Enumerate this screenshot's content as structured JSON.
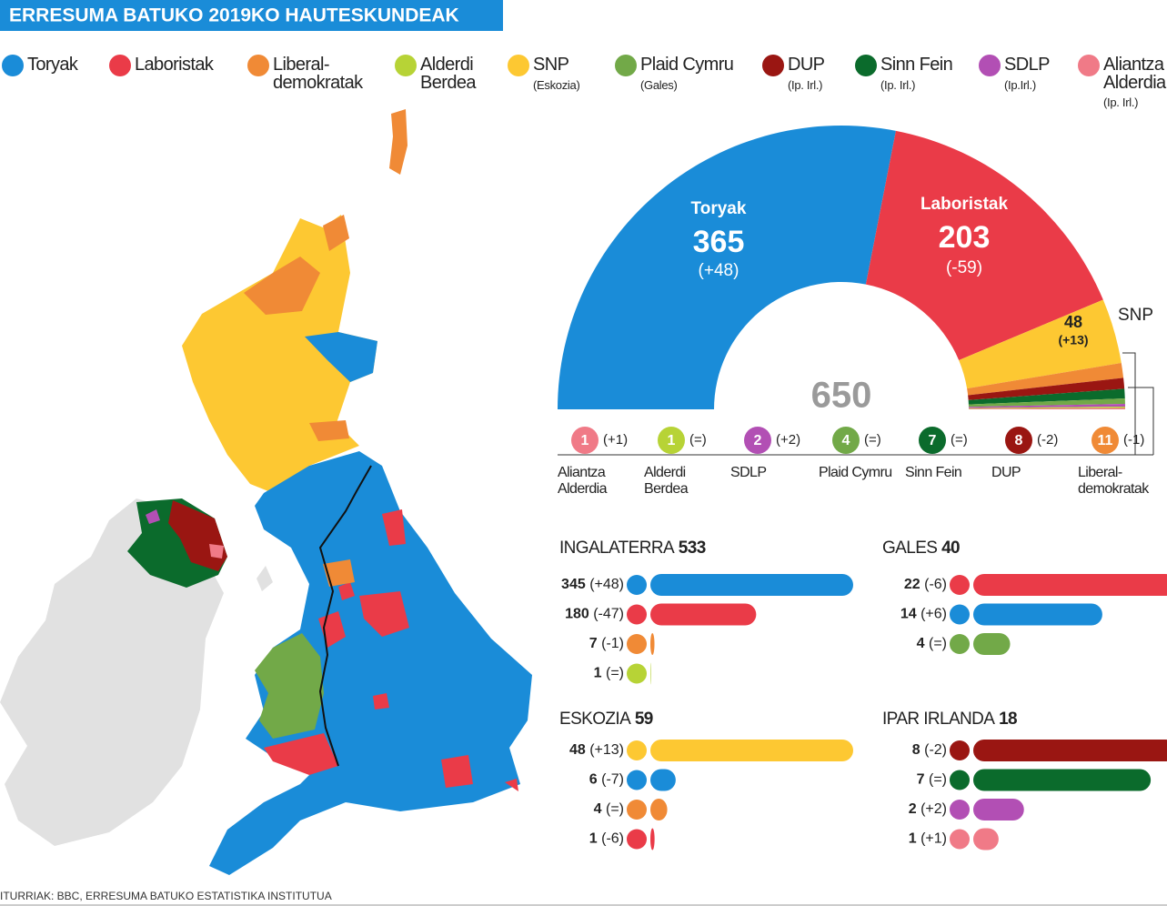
{
  "title": "ERRESUMA BATUKO 2019KO HAUTESKUNDEAK",
  "source": "ITURRIAK: BBC, ERRESUMA BATUKO ESTATISTIKA INSTITUTUA",
  "legend": [
    {
      "name": "Toryak",
      "color": "#1a8cd8"
    },
    {
      "name": "Laboristak",
      "color": "#ea3b48"
    },
    {
      "name": "Liberal-demokratak",
      "color": "#f08a36"
    },
    {
      "name": "Alderdi Berdea",
      "color": "#b7d336"
    },
    {
      "name": "SNP",
      "note": "(Eskozia)",
      "color": "#fdc832"
    },
    {
      "name": "Plaid Cymru",
      "note": "(Gales)",
      "color": "#72a948"
    },
    {
      "name": "DUP",
      "note": "(Ip. Irl.)",
      "color": "#9a1612"
    },
    {
      "name": "Sinn Fein",
      "note": "(Ip. Irl.)",
      "color": "#0b6b2c"
    },
    {
      "name": "SDLP",
      "note": "(Ip.Irl.)",
      "color": "#b24fb4"
    },
    {
      "name": "Aliantza Alderdia",
      "note": "(Ip. Irl.)",
      "color": "#f07a87"
    }
  ],
  "chart_data": [
    {
      "type": "half-donut",
      "total": 650,
      "categories": [
        "Toryak",
        "Laboristak",
        "SNP",
        "Liberal-demokratak",
        "DUP",
        "Sinn Fein",
        "Plaid Cymru",
        "SDLP",
        "Alderdi Berdea",
        "Aliantza Alderdia"
      ],
      "values": [
        365,
        203,
        48,
        11,
        8,
        7,
        4,
        2,
        1,
        1
      ],
      "changes": [
        "(+48)",
        "(-59)",
        "(+13)",
        "(-1)",
        "(-2)",
        "(=)",
        "(=)",
        "(+2)",
        "(=)",
        "(+1)"
      ],
      "colors": [
        "#1a8cd8",
        "#ea3b48",
        "#fdc832",
        "#f08a36",
        "#9a1612",
        "#0b6b2c",
        "#72a948",
        "#b24fb4",
        "#b7d336",
        "#f07a87"
      ]
    },
    {
      "type": "bar",
      "title": "INGALATERRA",
      "total": 533,
      "xlim": [
        0,
        345
      ],
      "values": [
        345,
        180,
        7,
        1
      ],
      "changes": [
        "(+48)",
        "(-47)",
        "(-1)",
        "(=)"
      ],
      "colors": [
        "#1a8cd8",
        "#ea3b48",
        "#f08a36",
        "#b7d336"
      ]
    },
    {
      "type": "bar",
      "title": "GALES",
      "total": 40,
      "xlim": [
        0,
        22
      ],
      "values": [
        22,
        14,
        4
      ],
      "changes": [
        "(-6)",
        "(+6)",
        "(=)"
      ],
      "colors": [
        "#ea3b48",
        "#1a8cd8",
        "#72a948"
      ]
    },
    {
      "type": "bar",
      "title": "ESKOZIA",
      "total": 59,
      "xlim": [
        0,
        48
      ],
      "values": [
        48,
        6,
        4,
        1
      ],
      "changes": [
        "(+13)",
        "(-7)",
        "(=)",
        "(-6)"
      ],
      "colors": [
        "#fdc832",
        "#1a8cd8",
        "#f08a36",
        "#ea3b48"
      ]
    },
    {
      "type": "bar",
      "title": "IPAR IRLANDA",
      "total": 18,
      "xlim": [
        0,
        8
      ],
      "values": [
        8,
        7,
        2,
        1
      ],
      "changes": [
        "(-2)",
        "(=)",
        "(+2)",
        "(+1)"
      ],
      "colors": [
        "#9a1612",
        "#0b6b2c",
        "#b24fb4",
        "#f07a87"
      ]
    }
  ]
}
